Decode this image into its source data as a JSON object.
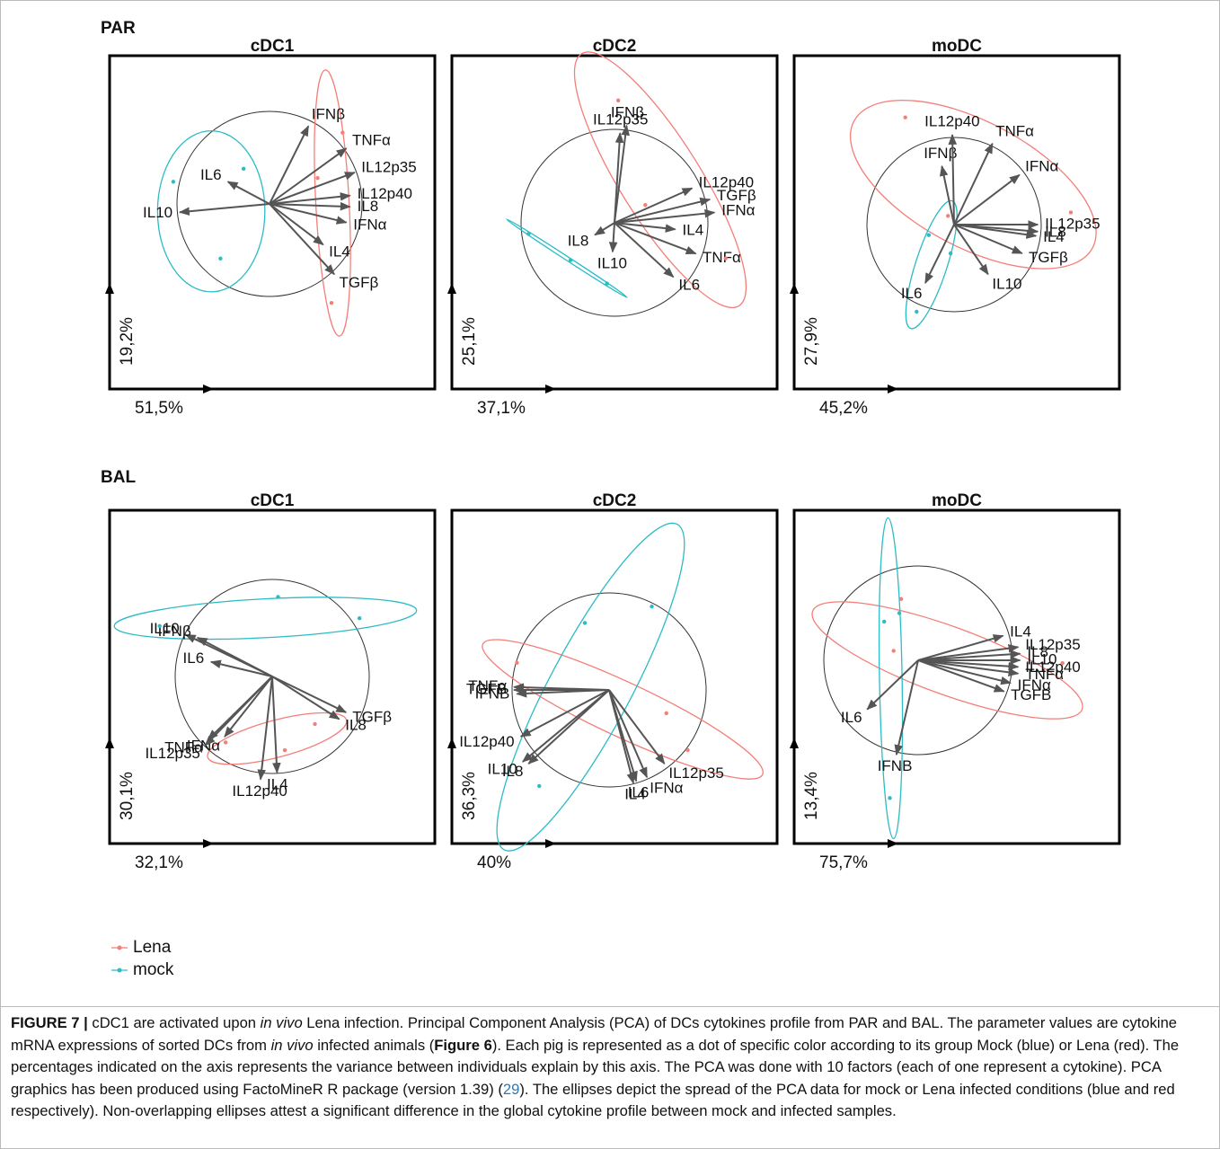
{
  "row_labels": [
    "PAR",
    "BAL"
  ],
  "legend": [
    {
      "name": "Lena",
      "color": "#f47e78"
    },
    {
      "name": "mock",
      "color": "#2bbcc4"
    }
  ],
  "chart_data": [
    {
      "type": "biplot",
      "title": "cDC1",
      "xlabel": "51,5%",
      "ylabel": "19,2%",
      "variables": {
        "names": [
          "IFNβ",
          "TNFα",
          "IL12p35",
          "IL12p40",
          "IL8",
          "IFNα",
          "IL4",
          "TGFβ",
          "IL6",
          "IL10"
        ],
        "x": [
          0.42,
          0.83,
          0.92,
          0.87,
          0.87,
          0.83,
          0.58,
          0.7,
          -0.45,
          -0.97
        ],
        "y": [
          0.84,
          0.6,
          0.34,
          0.09,
          -0.03,
          -0.2,
          -0.44,
          -0.76,
          0.24,
          -0.09
        ]
      },
      "series": [
        {
          "x": [
            0.79,
            0.52,
            0.67
          ],
          "y": [
            0.77,
            0.28,
            -1.07
          ],
          "ellipse": {
            "cx": 0.68,
            "cy": 0.01,
            "rx": 1.44,
            "ry": 0.18,
            "angle": 93
          }
        },
        {
          "x": [
            -1.04,
            -0.28,
            -0.53
          ],
          "y": [
            0.24,
            0.38,
            -0.59
          ],
          "ellipse": {
            "cx": -0.63,
            "cy": -0.08,
            "rx": 0.58,
            "ry": 0.87,
            "angle": 0
          }
        }
      ]
    },
    {
      "type": "biplot",
      "title": "cDC2",
      "xlabel": "37,1%",
      "ylabel": "25,1%",
      "variables": {
        "names": [
          "IFNβ",
          "IL12p35",
          "IL12p40",
          "TGFβ",
          "IFNα",
          "IL4",
          "TNFα",
          "IL6",
          "IL8",
          "IL10"
        ],
        "x": [
          0.13,
          0.06,
          0.83,
          1.02,
          1.07,
          0.65,
          0.87,
          0.63,
          -0.21,
          -0.02
        ],
        "y": [
          1.04,
          0.96,
          0.37,
          0.25,
          0.11,
          -0.07,
          -0.33,
          -0.58,
          -0.13,
          -0.31
        ]
      },
      "series": [
        {
          "x": [
            0.04,
            0.33,
            1.19
          ],
          "y": [
            1.31,
            0.19,
            -0.38
          ],
          "ellipse": {
            "cx": 0.49,
            "cy": 0.46,
            "rx": 1.59,
            "ry": 0.43,
            "angle": -58
          }
        },
        {
          "x": [
            -0.92,
            -0.47,
            -0.08
          ],
          "y": [
            -0.12,
            -0.4,
            -0.65
          ],
          "ellipse": {
            "cx": -0.51,
            "cy": -0.38,
            "rx": 0.77,
            "ry": 0.02,
            "angle": -33
          }
        }
      ]
    },
    {
      "type": "biplot",
      "title": "moDC",
      "xlabel": "45,2%",
      "ylabel": "27,9%",
      "variables": {
        "names": [
          "IFNβ",
          "IL12p40",
          "TNFα",
          "IFNα",
          "IL12p35",
          "IL8",
          "IL4",
          "TGFβ",
          "IL10",
          "IL6"
        ],
        "x": [
          -0.14,
          -0.02,
          0.44,
          0.75,
          0.96,
          0.96,
          0.94,
          0.78,
          0.39,
          -0.33
        ],
        "y": [
          0.67,
          1.03,
          0.93,
          0.57,
          0.0,
          -0.08,
          -0.13,
          -0.33,
          -0.57,
          -0.67
        ]
      },
      "series": [
        {
          "x": [
            -0.56,
            -0.07,
            1.34
          ],
          "y": [
            1.23,
            0.1,
            0.14
          ],
          "ellipse": {
            "cx": 0.22,
            "cy": 0.46,
            "rx": 1.55,
            "ry": 0.72,
            "angle": -28
          }
        },
        {
          "x": [
            -0.29,
            -0.04,
            -0.43
          ],
          "y": [
            -0.12,
            -0.33,
            -1.0
          ],
          "ellipse": {
            "cx": -0.26,
            "cy": -0.46,
            "rx": 0.77,
            "ry": 0.18,
            "angle": 72
          }
        }
      ]
    },
    {
      "type": "biplot",
      "title": "cDC1",
      "xlabel": "32,1%",
      "ylabel": "30,1%",
      "variables": {
        "names": [
          "IL10",
          "IFNβ",
          "IL6",
          "IFNα",
          "TNFα",
          "IL12p35",
          "IL12p40",
          "IL4",
          "IL8",
          "TGFβ"
        ],
        "x": [
          -0.89,
          -0.77,
          -0.63,
          -0.49,
          -0.66,
          -0.69,
          -0.12,
          0.05,
          0.69,
          0.76
        ],
        "y": [
          0.43,
          0.4,
          0.15,
          -0.62,
          -0.65,
          -0.71,
          -1.06,
          -0.99,
          -0.44,
          -0.37
        ]
      },
      "series": [
        {
          "x": [
            -0.48,
            0.13,
            0.44
          ],
          "y": [
            -0.68,
            -0.76,
            -0.49
          ],
          "ellipse": {
            "cx": 0.05,
            "cy": -0.64,
            "rx": 0.74,
            "ry": 0.19,
            "angle": 15
          }
        },
        {
          "x": [
            -1.16,
            0.06,
            0.9
          ],
          "y": [
            0.52,
            0.82,
            0.6
          ],
          "ellipse": {
            "cx": -0.07,
            "cy": 0.6,
            "rx": 1.56,
            "ry": 0.2,
            "angle": 3
          }
        }
      ]
    },
    {
      "type": "biplot",
      "title": "cDC2",
      "xlabel": "40%",
      "ylabel": "36,3%",
      "variables": {
        "names": [
          "TNFα",
          "TGFB",
          "IFNB",
          "IL12p40",
          "IL10",
          "IL8",
          "IL6",
          "IL4",
          "IFNα",
          "IL12p35"
        ],
        "x": [
          -0.98,
          -0.98,
          -0.95,
          -0.91,
          -0.89,
          -0.83,
          0.28,
          0.25,
          0.39,
          0.57
        ],
        "y": [
          0.03,
          0.0,
          -0.04,
          -0.48,
          -0.74,
          -0.76,
          -0.94,
          -0.96,
          -0.9,
          -0.76
        ]
      },
      "series": [
        {
          "x": [
            -0.95,
            0.59,
            0.81
          ],
          "y": [
            0.28,
            -0.24,
            -0.62
          ],
          "ellipse": {
            "cx": 0.14,
            "cy": -0.2,
            "rx": 1.59,
            "ry": 0.28,
            "angle": -25
          }
        },
        {
          "x": [
            -0.25,
            0.44,
            -0.72
          ],
          "y": [
            0.69,
            0.86,
            -0.99
          ],
          "ellipse": {
            "cx": -0.19,
            "cy": 0.03,
            "rx": 1.9,
            "ry": 0.42,
            "angle": 62
          }
        }
      ]
    },
    {
      "type": "biplot",
      "title": "moDC",
      "xlabel": "75,7%",
      "ylabel": "13,4%",
      "variables": {
        "names": [
          "IL4",
          "IL12p35",
          "IL8",
          "IL10",
          "IL12p40",
          "TNFα",
          "IFNα",
          "TGFB",
          "IL6",
          "IFNB"
        ],
        "x": [
          0.9,
          1.06,
          1.08,
          1.08,
          1.06,
          1.06,
          0.98,
          0.91,
          -0.54,
          -0.23
        ],
        "y": [
          0.26,
          0.14,
          0.07,
          0.0,
          -0.07,
          -0.14,
          -0.24,
          -0.33,
          -0.52,
          -1.0
        ]
      },
      "series": [
        {
          "x": [
            -0.18,
            -0.26,
            1.53
          ],
          "y": [
            0.65,
            0.1,
            -0.03
          ],
          "ellipse": {
            "cx": 0.31,
            "cy": 0.0,
            "rx": 1.52,
            "ry": 0.36,
            "angle": -20
          }
        },
        {
          "x": [
            -0.36,
            -0.2,
            -0.3
          ],
          "y": [
            0.41,
            0.5,
            -1.46
          ],
          "ellipse": {
            "cx": -0.29,
            "cy": -0.19,
            "rx": 1.7,
            "ry": 0.12,
            "angle": 91
          }
        }
      ]
    }
  ],
  "caption": [
    {
      "text": "FIGURE 7 |",
      "style": "bold"
    },
    {
      "text": " cDC1 are activated upon ",
      "style": "normal"
    },
    {
      "text": "in vivo",
      "style": "italic"
    },
    {
      "text": " Lena infection. Principal Component Analysis (PCA) of DCs cytokines profile from PAR and BAL. The parameter values are cytokine mRNA expressions of sorted DCs from ",
      "style": "normal"
    },
    {
      "text": "in vivo",
      "style": "italic"
    },
    {
      "text": " infected animals (",
      "style": "normal"
    },
    {
      "text": "Figure 6",
      "style": "bold"
    },
    {
      "text": "). Each pig is represented as a dot of specific color according to its group Mock (blue) or Lena (red). The percentages indicated on the axis represents the variance between individuals explain by this axis. The PCA was done with 10 factors (each of one represent a cytokine). PCA graphics has been produced using FactoMineR R package (version 1.39) (",
      "style": "normal"
    },
    {
      "text": "29",
      "style": "link"
    },
    {
      "text": "). The ellipses depict the spread of the PCA data for mock or Lena infected conditions (blue and red respectively). Non-overlapping ellipses attest a significant difference in the global cytokine profile between mock and infected samples.",
      "style": "normal"
    }
  ]
}
